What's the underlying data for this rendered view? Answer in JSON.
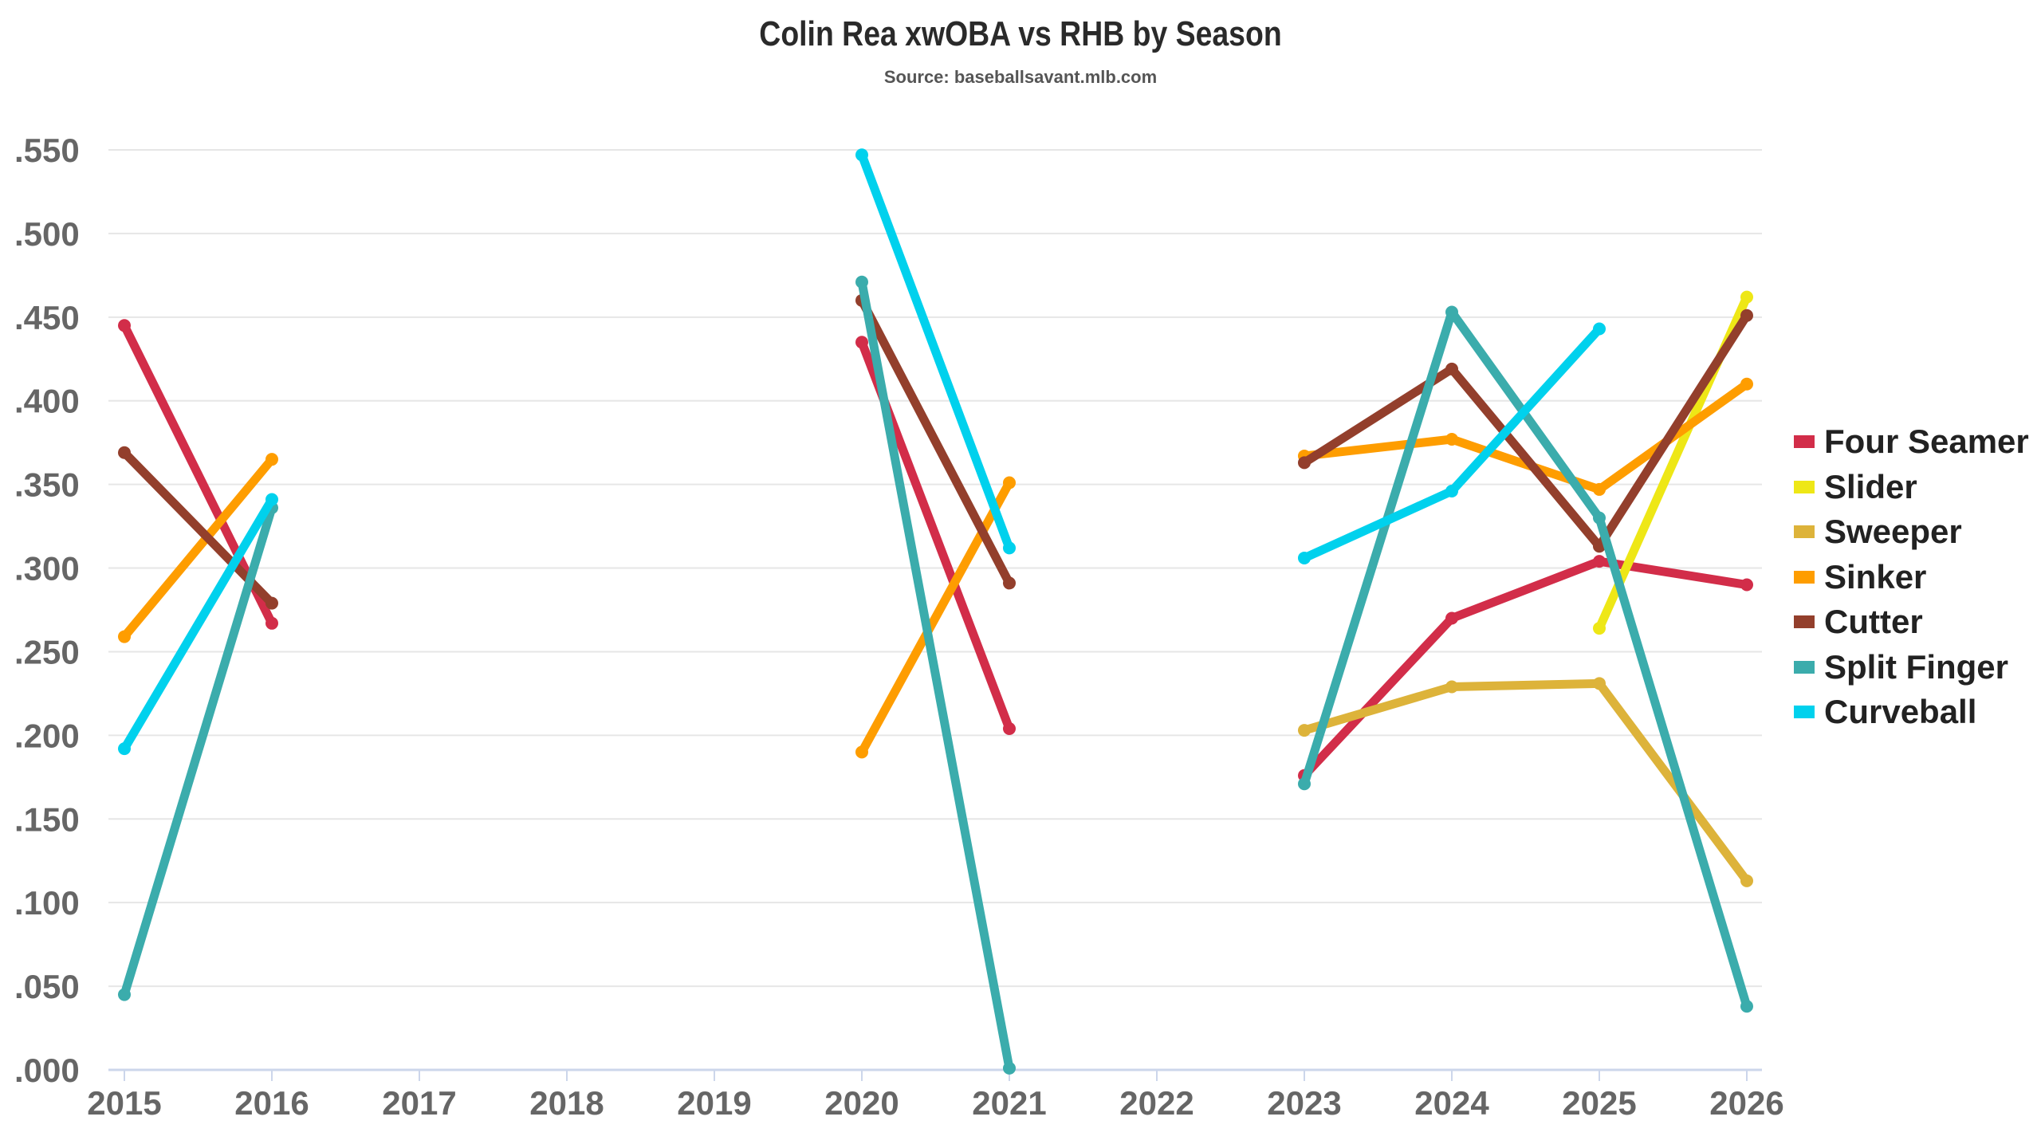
{
  "chart_data": {
    "type": "line",
    "title": "Colin Rea xwOBA vs RHB by Season",
    "subtitle": "Source: baseballsavant.mlb.com",
    "xlabel": "",
    "ylabel": "",
    "x": [
      2015,
      2016,
      2017,
      2018,
      2019,
      2020,
      2021,
      2022,
      2023,
      2024,
      2025,
      2026
    ],
    "x_tick_labels": [
      "2015",
      "2016",
      "2017",
      "2018",
      "2019",
      "2020",
      "2021",
      "2022",
      "2023",
      "2024",
      "2025",
      "2026"
    ],
    "ylim": [
      0,
      0.55
    ],
    "y_ticks": [
      0,
      0.05,
      0.1,
      0.15,
      0.2,
      0.25,
      0.3,
      0.35,
      0.4,
      0.45,
      0.5,
      0.55
    ],
    "y_tick_labels": [
      ".000",
      ".050",
      ".100",
      ".150",
      ".200",
      ".250",
      ".300",
      ".350",
      ".400",
      ".450",
      ".500",
      ".550"
    ],
    "grid": true,
    "legend_position": "right",
    "series": [
      {
        "name": "Four Seamer",
        "color": "#d22d49",
        "values": [
          0.445,
          0.267,
          null,
          null,
          null,
          0.435,
          0.204,
          null,
          0.176,
          0.27,
          0.304,
          0.29
        ]
      },
      {
        "name": "Slider",
        "color": "#eee716",
        "values": [
          null,
          null,
          null,
          null,
          null,
          null,
          null,
          null,
          null,
          null,
          0.264,
          0.462
        ]
      },
      {
        "name": "Sweeper",
        "color": "#ddb33a",
        "values": [
          null,
          null,
          null,
          null,
          null,
          null,
          null,
          null,
          0.203,
          0.229,
          0.231,
          0.113
        ]
      },
      {
        "name": "Sinker",
        "color": "#fe9d00",
        "values": [
          0.259,
          0.365,
          null,
          null,
          null,
          0.19,
          0.351,
          null,
          0.367,
          0.377,
          0.347,
          0.41
        ]
      },
      {
        "name": "Cutter",
        "color": "#933f2c",
        "values": [
          0.369,
          0.279,
          null,
          null,
          null,
          0.46,
          0.291,
          null,
          0.363,
          0.419,
          0.313,
          0.451
        ]
      },
      {
        "name": "Split Finger",
        "color": "#3bacac",
        "values": [
          0.045,
          0.336,
          null,
          null,
          null,
          0.471,
          0.001,
          null,
          0.171,
          0.453,
          0.33,
          0.038
        ]
      },
      {
        "name": "Curveball",
        "color": "#00d1ed",
        "values": [
          0.192,
          0.341,
          null,
          null,
          null,
          0.547,
          0.312,
          null,
          0.306,
          0.346,
          0.443,
          null
        ]
      }
    ]
  }
}
